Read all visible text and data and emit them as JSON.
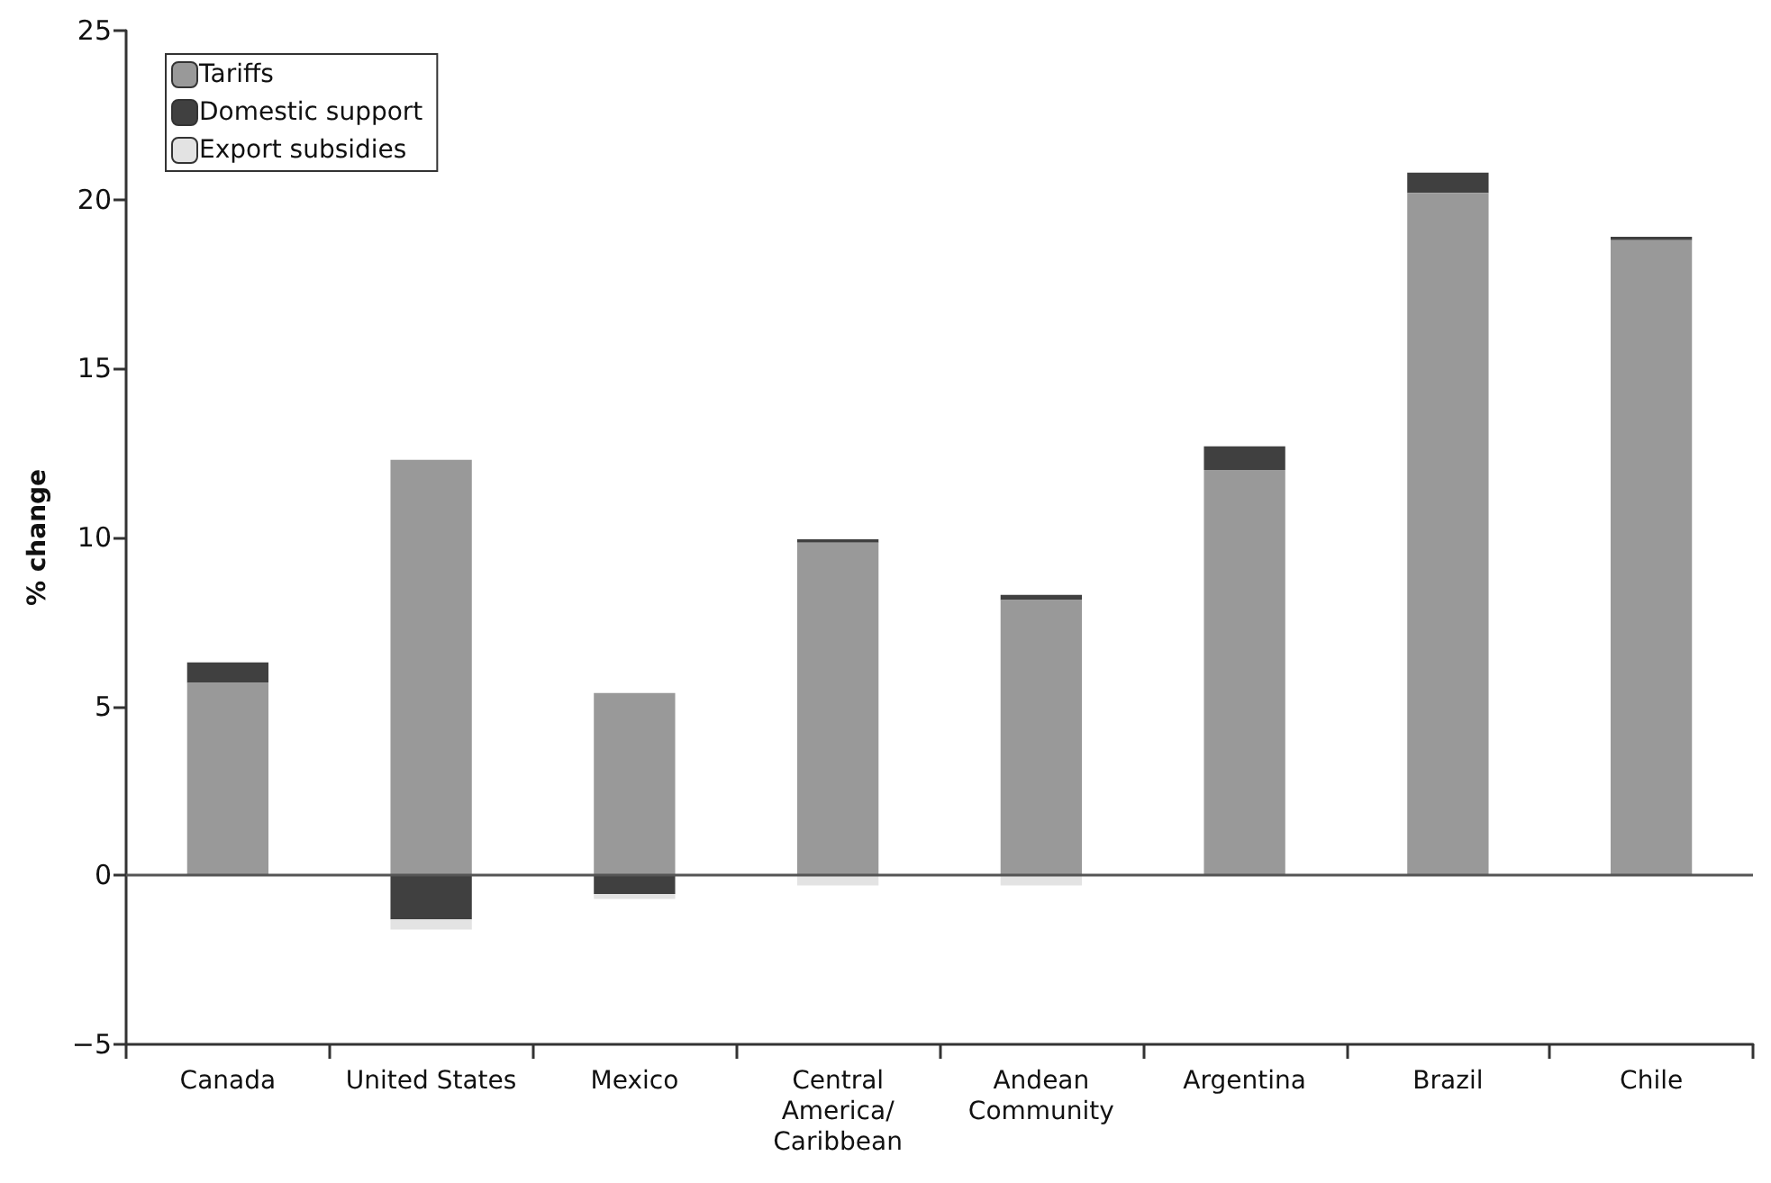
{
  "chart_data": {
    "type": "bar",
    "stacked": true,
    "ylabel": "% change",
    "categories": [
      "Canada",
      "United States",
      "Mexico",
      "Central America/Caribbean",
      "Andean Community",
      "Argentina",
      "Brazil",
      "Chile"
    ],
    "series": [
      {
        "name": "Tariffs",
        "color": "#999999",
        "values": [
          5.7,
          12.3,
          5.4,
          9.85,
          8.15,
          12.0,
          20.2,
          18.8
        ]
      },
      {
        "name": "Domestic support",
        "color": "#404040",
        "values": [
          0.6,
          -1.3,
          -0.55,
          0.1,
          0.15,
          0.7,
          0.6,
          0.1
        ]
      },
      {
        "name": "Export subsidies",
        "color": "#e3e3e3",
        "values": [
          0,
          -0.3,
          -0.15,
          -0.3,
          -0.3,
          null,
          null,
          null
        ]
      }
    ],
    "ylim": [
      -5,
      25
    ],
    "yticks": [
      -5,
      0,
      5,
      10,
      15,
      20,
      25
    ],
    "grid": false,
    "legend": "top left",
    "ref_lines": [
      {
        "axis": "y",
        "value": 0,
        "color": "#555555"
      }
    ]
  }
}
